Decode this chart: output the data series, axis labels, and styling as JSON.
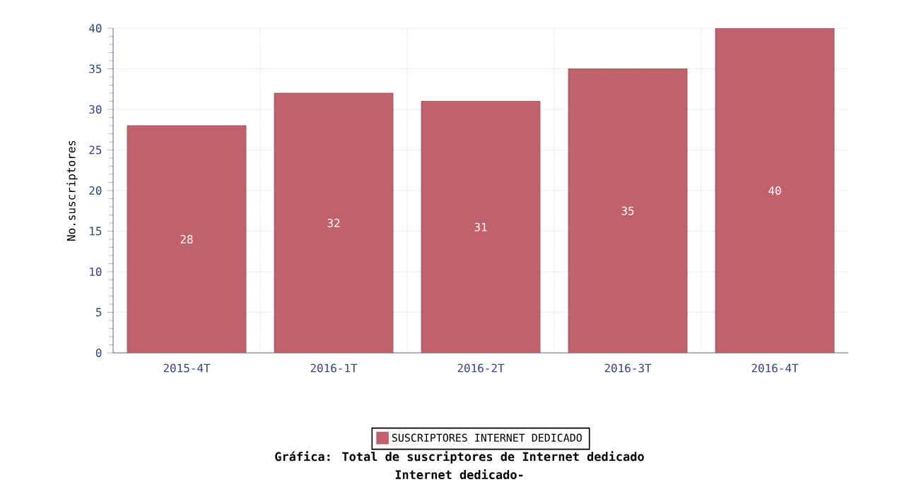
{
  "chart_data": {
    "type": "bar",
    "title": "Gráfica: Total de suscriptores de Internet dedicado",
    "subtitle": "Internet dedicado-",
    "ylabel": "No.suscriptores",
    "categories": [
      "2015-4T",
      "2016-1T",
      "2016-2T",
      "2016-3T",
      "2016-4T"
    ],
    "series": [
      {
        "name": "SUSCRIPTORES INTERNET DEDICADO",
        "color": "#c0626b",
        "values": [
          28,
          32,
          31,
          35,
          40
        ]
      }
    ],
    "ylim": [
      0,
      40
    ],
    "yticks": [
      0,
      5,
      10,
      15,
      20,
      25,
      30,
      35,
      40
    ],
    "grid": true,
    "legend": "bottom",
    "data_labels": true
  }
}
